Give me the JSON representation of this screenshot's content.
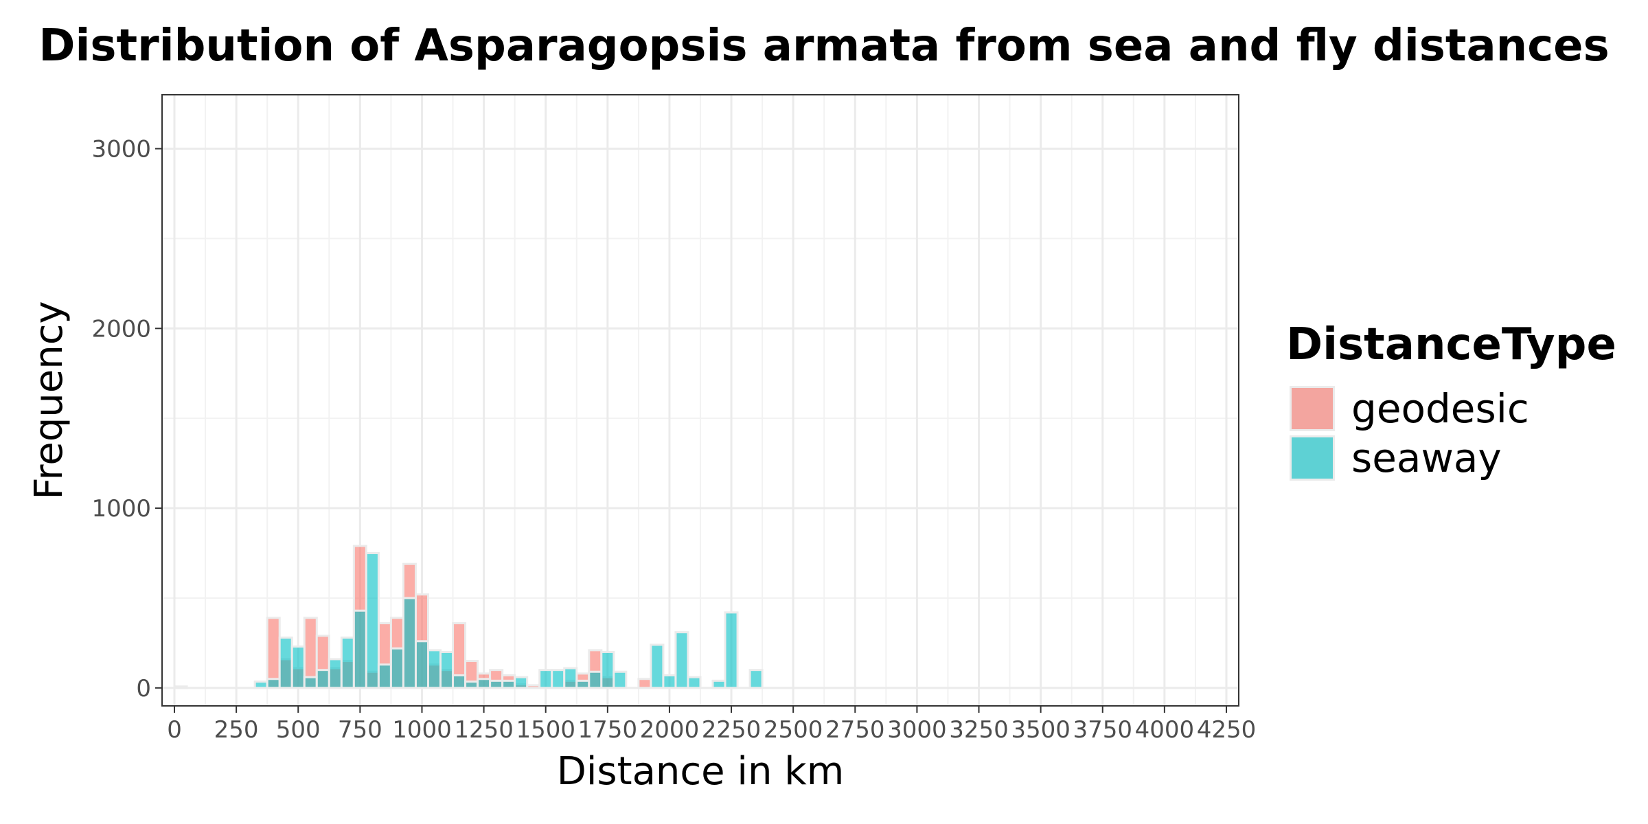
{
  "chart_data": {
    "type": "bar",
    "title": "Distribution of Asparagopsis armata from sea and fly distances",
    "xlabel": "Distance in km",
    "ylabel": "Frequency",
    "xlim": [
      0,
      4300
    ],
    "ylim": [
      0,
      3300
    ],
    "x_ticks": [
      0,
      250,
      500,
      750,
      1000,
      1250,
      1500,
      1750,
      2000,
      2250,
      2500,
      2750,
      3000,
      3250,
      3500,
      3750,
      4000,
      4250
    ],
    "x_tick_labels": [
      "0",
      "250",
      "500",
      "750",
      "1000",
      "1250",
      "1500",
      "1750",
      "2000",
      "2250",
      "2500",
      "2750",
      "3000",
      "3250",
      "3500",
      "3750",
      "4000",
      "4250"
    ],
    "y_ticks": [
      0,
      1000,
      2000,
      3000
    ],
    "y_tick_labels": [
      "0",
      "1000",
      "2000",
      "3000"
    ],
    "bin_width": 50,
    "grid": true,
    "legend": {
      "title": "DistanceType",
      "position": "right"
    },
    "series": [
      {
        "name": "geodesic",
        "color": "#F8766D",
        "bins": [
          [
            25,
            8
          ],
          [
            400,
            390
          ],
          [
            450,
            160
          ],
          [
            500,
            110
          ],
          [
            550,
            390
          ],
          [
            600,
            290
          ],
          [
            650,
            110
          ],
          [
            700,
            150
          ],
          [
            750,
            790
          ],
          [
            800,
            90
          ],
          [
            850,
            360
          ],
          [
            900,
            390
          ],
          [
            950,
            690
          ],
          [
            1000,
            520
          ],
          [
            1050,
            130
          ],
          [
            1100,
            100
          ],
          [
            1150,
            360
          ],
          [
            1200,
            150
          ],
          [
            1250,
            80
          ],
          [
            1300,
            100
          ],
          [
            1350,
            70
          ],
          [
            1400,
            20
          ],
          [
            1450,
            15
          ],
          [
            1600,
            40
          ],
          [
            1650,
            80
          ],
          [
            1700,
            210
          ],
          [
            1750,
            60
          ],
          [
            1900,
            50
          ]
        ]
      },
      {
        "name": "seaway",
        "color": "#00BFC4",
        "bins": [
          [
            350,
            35
          ],
          [
            400,
            50
          ],
          [
            450,
            280
          ],
          [
            500,
            230
          ],
          [
            550,
            60
          ],
          [
            600,
            100
          ],
          [
            650,
            160
          ],
          [
            700,
            280
          ],
          [
            750,
            430
          ],
          [
            800,
            750
          ],
          [
            850,
            130
          ],
          [
            900,
            220
          ],
          [
            950,
            500
          ],
          [
            1000,
            260
          ],
          [
            1050,
            210
          ],
          [
            1100,
            200
          ],
          [
            1150,
            70
          ],
          [
            1200,
            35
          ],
          [
            1250,
            50
          ],
          [
            1300,
            40
          ],
          [
            1350,
            40
          ],
          [
            1400,
            60
          ],
          [
            1500,
            100
          ],
          [
            1550,
            100
          ],
          [
            1600,
            110
          ],
          [
            1650,
            40
          ],
          [
            1700,
            90
          ],
          [
            1750,
            200
          ],
          [
            1800,
            90
          ],
          [
            1950,
            240
          ],
          [
            2000,
            70
          ],
          [
            2050,
            310
          ],
          [
            2100,
            60
          ],
          [
            2200,
            40
          ],
          [
            2250,
            420
          ],
          [
            2350,
            100
          ]
        ]
      }
    ]
  }
}
